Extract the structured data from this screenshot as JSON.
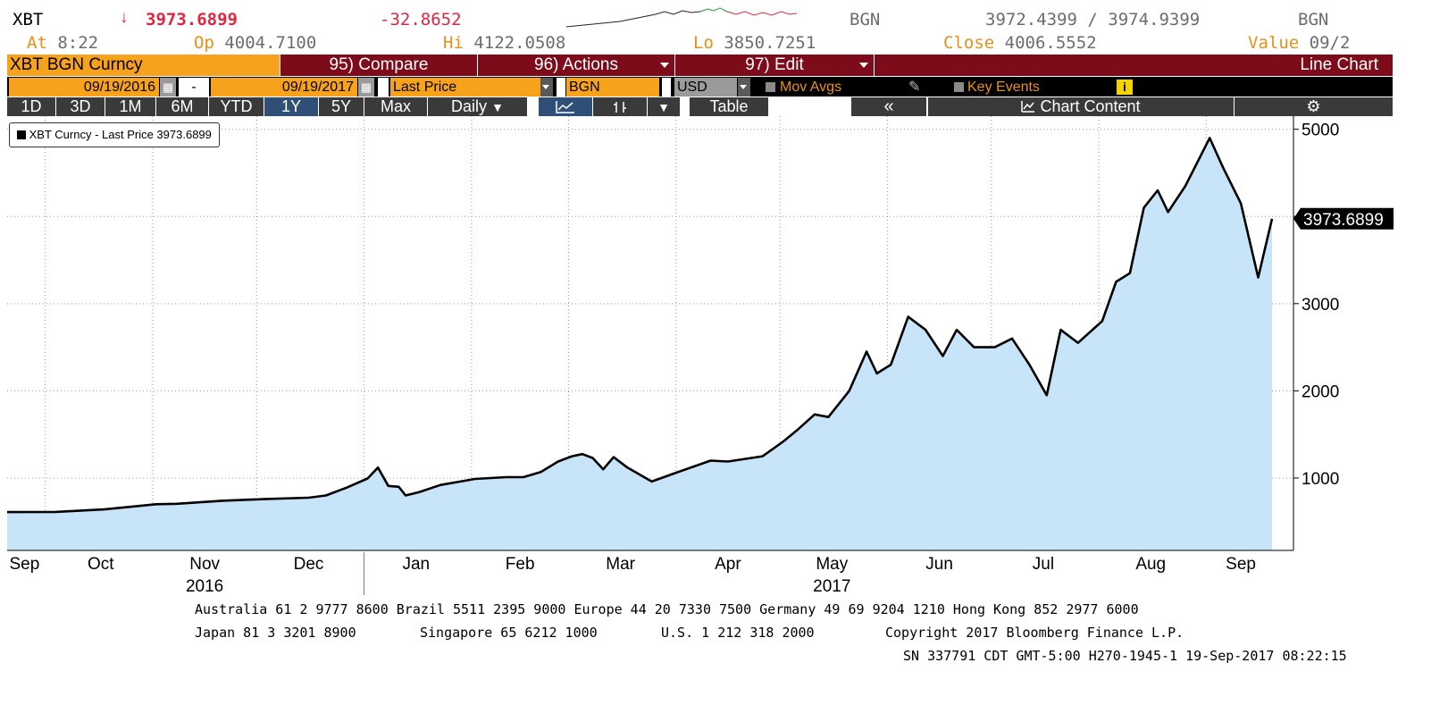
{
  "header": {
    "ticker": "XBT",
    "arrow": "↓",
    "last": "3973.6899",
    "change": "-32.8652",
    "src1": "BGN",
    "bid_ask": "3972.4399 / 3974.9399",
    "src2": "BGN",
    "at_label": "At",
    "at_value": "8:22",
    "op_label": "Op",
    "op_value": "4004.7100",
    "hi_label": "Hi",
    "hi_value": "4122.0508",
    "lo_label": "Lo",
    "lo_value": "3850.7251",
    "close_label": "Close",
    "close_value": "4006.5552",
    "value_label": "Value",
    "value_value": "09/2"
  },
  "menu": {
    "security": "XBT BGN Curncy",
    "compare": "95) Compare",
    "actions": "96) Actions",
    "edit": "97) Edit",
    "chart_type": "Line Chart"
  },
  "controls": {
    "start_date": "09/19/2016",
    "dash": "-",
    "end_date": "09/19/2017",
    "field": "Last Price",
    "source": "BGN",
    "currency": "USD",
    "mov_avgs": "Mov Avgs",
    "key_events": "Key Events",
    "info": "i"
  },
  "toolbar": {
    "periods": [
      "1D",
      "3D",
      "1M",
      "6M",
      "YTD",
      "1Y",
      "5Y",
      "Max"
    ],
    "selected_period": "1Y",
    "frequency": "Daily",
    "table": "Table",
    "collapse": "«",
    "chart_content": "Chart Content",
    "settings": "⚙"
  },
  "colors": {
    "orange": "#f7a21d",
    "maroon": "#7e0b1a",
    "down_red": "#e1263f",
    "area_fill": "#c8e4f8",
    "line": "#000000"
  },
  "footer": {
    "line1": "Australia 61 2 9777 8600 Brazil 5511 2395 9000 Europe 44 20 7330 7500 Germany 49 69 9204 1210 Hong Kong 852 2977 6000",
    "line2_japan": "Japan 81 3 3201 8900",
    "line2_singapore": "Singapore 65 6212 1000",
    "line2_us": "U.S. 1 212 318 2000",
    "line2_copyright": "Copyright 2017 Bloomberg Finance L.P.",
    "line3": "SN 337791 CDT  GMT-5:00 H270-1945-1 19-Sep-2017 08:22:15"
  },
  "chart_data": {
    "type": "area",
    "legend": "XBT Curncy - Last Price 3973.6899",
    "last_label": "3973.6899",
    "x_ticks": [
      "Sep",
      "Oct",
      "Nov",
      "Dec",
      "Jan",
      "Feb",
      "Mar",
      "Apr",
      "May",
      "Jun",
      "Jul",
      "Aug",
      "Sep"
    ],
    "years": [
      "2016",
      "2017"
    ],
    "y_ticks": [
      1000,
      2000,
      3000,
      4000,
      5000
    ],
    "ylim": [
      170,
      5150
    ],
    "grid": true,
    "series": [
      {
        "values": [
          {
            "x": "2016-09-19",
            "y": 610
          },
          {
            "x": "2016-10-03",
            "y": 612
          },
          {
            "x": "2016-10-17",
            "y": 640
          },
          {
            "x": "2016-11-01",
            "y": 700
          },
          {
            "x": "2016-11-07",
            "y": 705
          },
          {
            "x": "2016-11-20",
            "y": 740
          },
          {
            "x": "2016-12-03",
            "y": 760
          },
          {
            "x": "2016-12-15",
            "y": 775
          },
          {
            "x": "2016-12-20",
            "y": 800
          },
          {
            "x": "2016-12-26",
            "y": 890
          },
          {
            "x": "2017-01-01",
            "y": 995
          },
          {
            "x": "2017-01-04",
            "y": 1120
          },
          {
            "x": "2017-01-07",
            "y": 910
          },
          {
            "x": "2017-01-10",
            "y": 900
          },
          {
            "x": "2017-01-12",
            "y": 800
          },
          {
            "x": "2017-01-16",
            "y": 840
          },
          {
            "x": "2017-01-22",
            "y": 920
          },
          {
            "x": "2017-02-01",
            "y": 990
          },
          {
            "x": "2017-02-10",
            "y": 1010
          },
          {
            "x": "2017-02-15",
            "y": 1010
          },
          {
            "x": "2017-02-20",
            "y": 1070
          },
          {
            "x": "2017-02-25",
            "y": 1190
          },
          {
            "x": "2017-03-01",
            "y": 1250
          },
          {
            "x": "2017-03-04",
            "y": 1275
          },
          {
            "x": "2017-03-07",
            "y": 1230
          },
          {
            "x": "2017-03-10",
            "y": 1100
          },
          {
            "x": "2017-03-13",
            "y": 1240
          },
          {
            "x": "2017-03-17",
            "y": 1120
          },
          {
            "x": "2017-03-24",
            "y": 960
          },
          {
            "x": "2017-03-31",
            "y": 1060
          },
          {
            "x": "2017-04-10",
            "y": 1200
          },
          {
            "x": "2017-04-15",
            "y": 1190
          },
          {
            "x": "2017-04-25",
            "y": 1250
          },
          {
            "x": "2017-05-01",
            "y": 1420
          },
          {
            "x": "2017-05-05",
            "y": 1550
          },
          {
            "x": "2017-05-10",
            "y": 1730
          },
          {
            "x": "2017-05-14",
            "y": 1700
          },
          {
            "x": "2017-05-20",
            "y": 2000
          },
          {
            "x": "2017-05-25",
            "y": 2450
          },
          {
            "x": "2017-05-28",
            "y": 2200
          },
          {
            "x": "2017-06-01",
            "y": 2300
          },
          {
            "x": "2017-06-06",
            "y": 2850
          },
          {
            "x": "2017-06-11",
            "y": 2700
          },
          {
            "x": "2017-06-16",
            "y": 2400
          },
          {
            "x": "2017-06-20",
            "y": 2700
          },
          {
            "x": "2017-06-25",
            "y": 2500
          },
          {
            "x": "2017-07-01",
            "y": 2500
          },
          {
            "x": "2017-07-06",
            "y": 2600
          },
          {
            "x": "2017-07-11",
            "y": 2300
          },
          {
            "x": "2017-07-16",
            "y": 1950
          },
          {
            "x": "2017-07-20",
            "y": 2700
          },
          {
            "x": "2017-07-25",
            "y": 2550
          },
          {
            "x": "2017-08-01",
            "y": 2800
          },
          {
            "x": "2017-08-05",
            "y": 3250
          },
          {
            "x": "2017-08-09",
            "y": 3350
          },
          {
            "x": "2017-08-13",
            "y": 4100
          },
          {
            "x": "2017-08-17",
            "y": 4300
          },
          {
            "x": "2017-08-20",
            "y": 4050
          },
          {
            "x": "2017-08-25",
            "y": 4350
          },
          {
            "x": "2017-09-01",
            "y": 4900
          },
          {
            "x": "2017-09-05",
            "y": 4550
          },
          {
            "x": "2017-09-10",
            "y": 4150
          },
          {
            "x": "2017-09-15",
            "y": 3300
          },
          {
            "x": "2017-09-19",
            "y": 3973.69
          }
        ]
      }
    ]
  }
}
